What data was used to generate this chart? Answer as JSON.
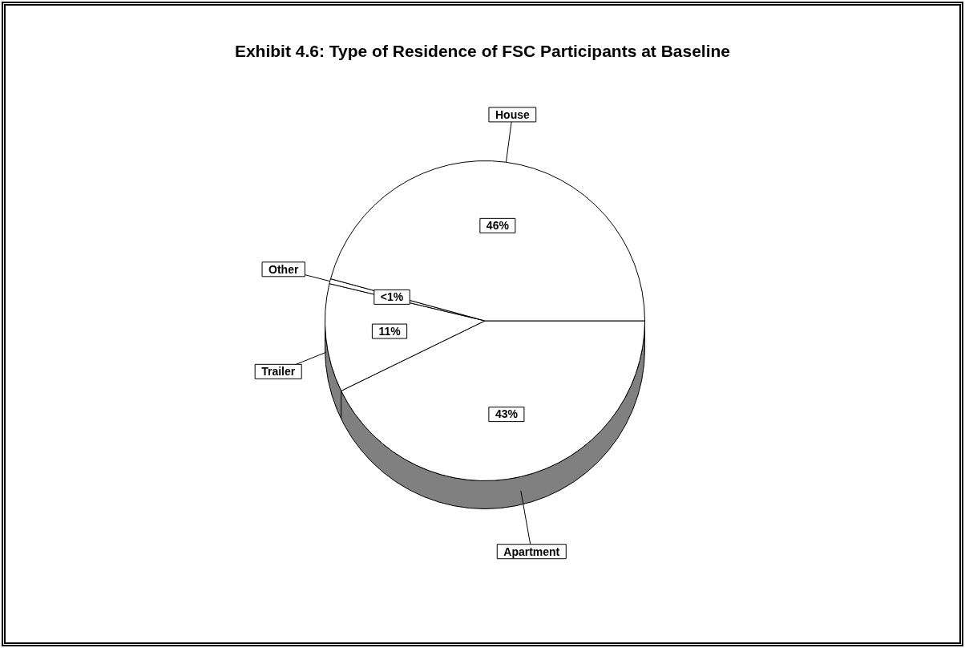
{
  "chart_data": {
    "type": "pie",
    "title": "Exhibit 4.6:  Type of Residence of FSC Participants at Baseline",
    "categories": [
      "Apartment",
      "Trailer",
      "Other",
      "House"
    ],
    "values": [
      43,
      11,
      0.5,
      46
    ],
    "value_labels": [
      "43%",
      "11%",
      "<1%",
      "46%"
    ],
    "colors": [
      "#ffffff",
      "#ffffff",
      "#ffffff",
      "#ffffff"
    ],
    "legend": false
  }
}
